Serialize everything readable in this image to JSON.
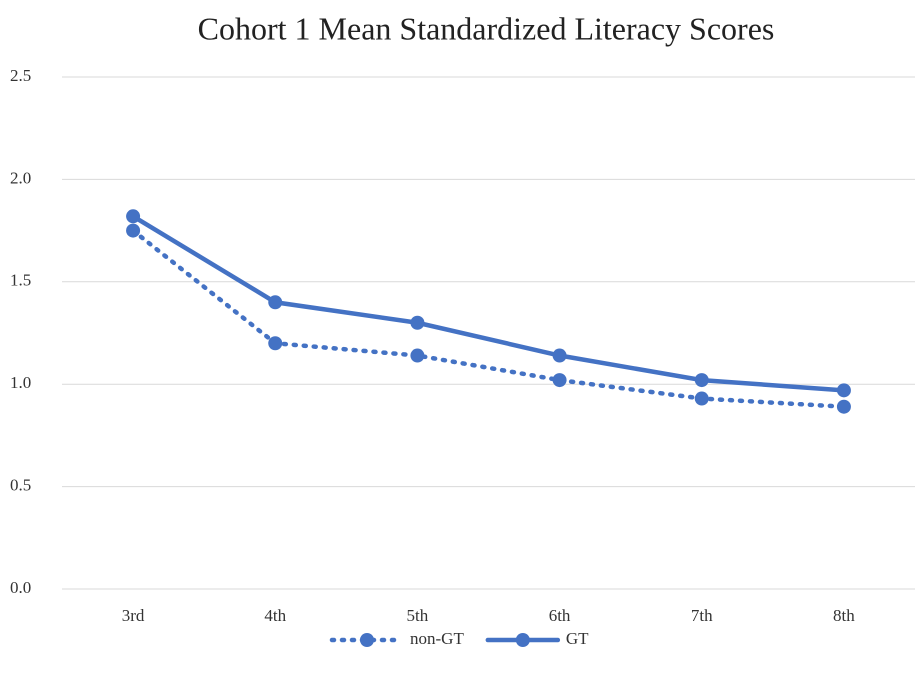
{
  "chart_data": {
    "type": "line",
    "title": "Cohort 1 Mean Standardized Literacy Scores",
    "categories": [
      "3rd",
      "4th",
      "5th",
      "6th",
      "7th",
      "8th"
    ],
    "series": [
      {
        "name": "non-GT",
        "color": "#4472c4",
        "dash": "dotted",
        "values": [
          1.75,
          1.2,
          1.14,
          1.02,
          0.93,
          0.89
        ]
      },
      {
        "name": "GT",
        "color": "#4472c4",
        "dash": "solid",
        "values": [
          1.82,
          1.4,
          1.3,
          1.14,
          1.02,
          0.97
        ]
      }
    ],
    "ylim": [
      0,
      2.5
    ],
    "yticks": [
      {
        "value": 0,
        "label": "0.0"
      },
      0.5,
      {
        "value": 1,
        "label": "1.0"
      },
      1.5,
      {
        "value": 2,
        "label": "2.0"
      },
      2.5
    ],
    "grid": true,
    "legend": "bottom"
  }
}
